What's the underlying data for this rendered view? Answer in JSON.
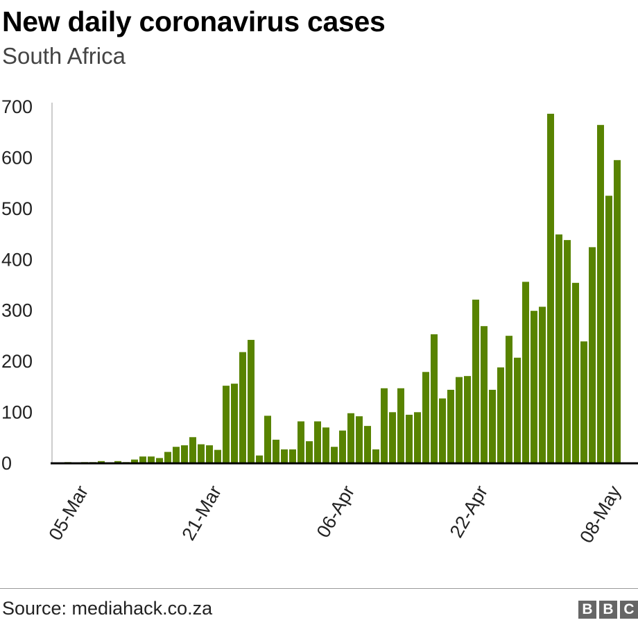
{
  "chart_data": {
    "type": "bar",
    "title": "New daily coronavirus cases",
    "subtitle": "South Africa",
    "xlabel": "",
    "ylabel": "",
    "ylim": [
      0,
      700
    ],
    "yticks": [
      "0",
      "100",
      "200",
      "300",
      "400",
      "500",
      "600",
      "700"
    ],
    "xtick_labels": [
      "05-Mar",
      "21-Mar",
      "06-Apr",
      "22-Apr",
      "08-May"
    ],
    "grid": false,
    "bar_color": "#588300",
    "categories": [
      "02-Mar",
      "03-Mar",
      "04-Mar",
      "05-Mar",
      "06-Mar",
      "07-Mar",
      "08-Mar",
      "09-Mar",
      "10-Mar",
      "11-Mar",
      "12-Mar",
      "13-Mar",
      "14-Mar",
      "15-Mar",
      "16-Mar",
      "17-Mar",
      "18-Mar",
      "19-Mar",
      "20-Mar",
      "21-Mar",
      "22-Mar",
      "23-Mar",
      "24-Mar",
      "25-Mar",
      "26-Mar",
      "27-Mar",
      "28-Mar",
      "29-Mar",
      "30-Mar",
      "31-Mar",
      "01-Apr",
      "02-Apr",
      "03-Apr",
      "04-Apr",
      "05-Apr",
      "06-Apr",
      "07-Apr",
      "08-Apr",
      "09-Apr",
      "10-Apr",
      "11-Apr",
      "12-Apr",
      "13-Apr",
      "14-Apr",
      "15-Apr",
      "16-Apr",
      "17-Apr",
      "18-Apr",
      "19-Apr",
      "20-Apr",
      "21-Apr",
      "22-Apr",
      "23-Apr",
      "24-Apr",
      "25-Apr",
      "26-Apr",
      "27-Apr",
      "28-Apr",
      "29-Apr",
      "30-Apr",
      "01-May",
      "02-May",
      "03-May",
      "04-May",
      "05-May",
      "06-May",
      "07-May",
      "08-May"
    ],
    "values": [
      0,
      1,
      0,
      1,
      1,
      3,
      0,
      3,
      1,
      6,
      12,
      12,
      9,
      21,
      31,
      34,
      50,
      36,
      34,
      25,
      151,
      155,
      217,
      241,
      14,
      92,
      45,
      26,
      26,
      81,
      42,
      81,
      69,
      31,
      63,
      97,
      91,
      72,
      26,
      146,
      99,
      146,
      94,
      99,
      178,
      252,
      126,
      143,
      168,
      170,
      320,
      268,
      143,
      187,
      249,
      206,
      355,
      298,
      306,
      685,
      448,
      437,
      353,
      238,
      423,
      663,
      524,
      594
    ]
  },
  "footer": {
    "source": "Source: mediahack.co.za",
    "logo": [
      "B",
      "B",
      "C"
    ]
  }
}
